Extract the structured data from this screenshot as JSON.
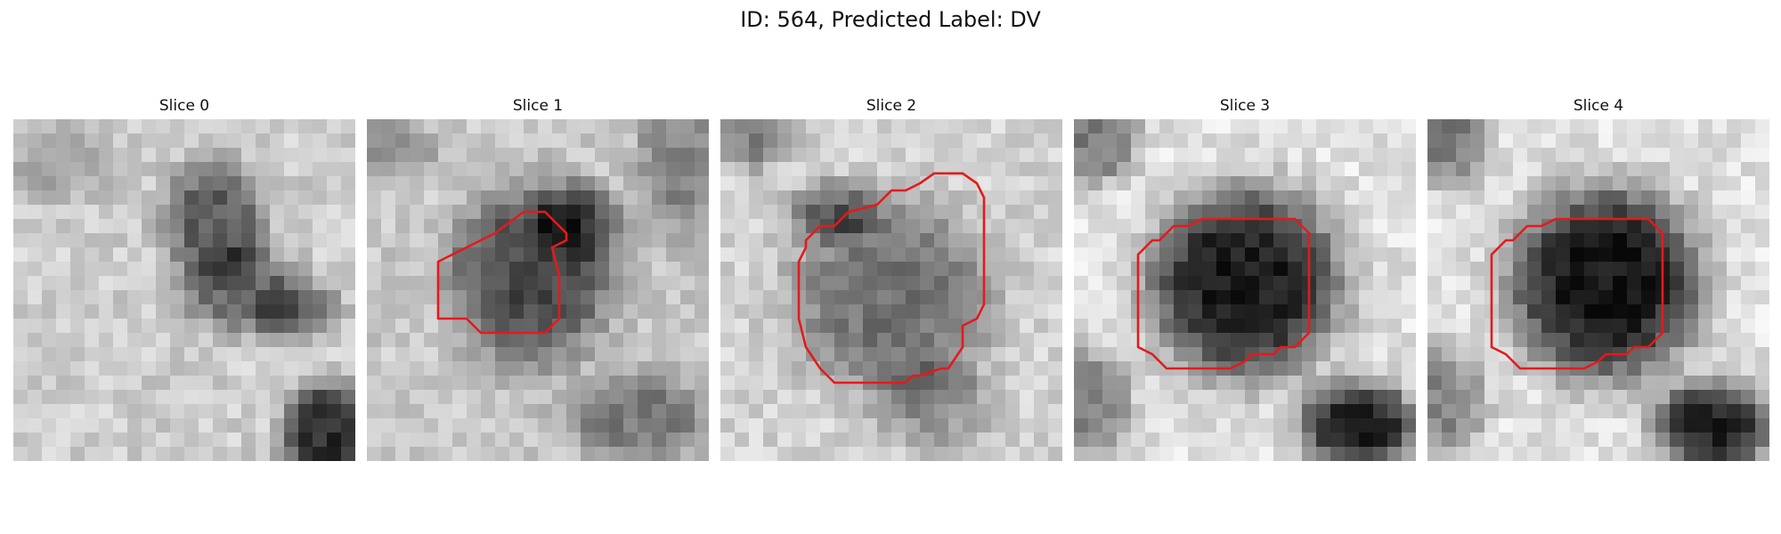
{
  "figure": {
    "title": "ID: 564, Predicted Label: DV"
  },
  "colors": {
    "contour": "#e41a1c",
    "background": "#ffffff"
  },
  "slices": [
    {
      "label": "Slice 0",
      "has_contour": false
    },
    {
      "label": "Slice 1",
      "has_contour": true
    },
    {
      "label": "Slice 2",
      "has_contour": true
    },
    {
      "label": "Slice 3",
      "has_contour": true
    },
    {
      "label": "Slice 4",
      "has_contour": true
    }
  ]
}
